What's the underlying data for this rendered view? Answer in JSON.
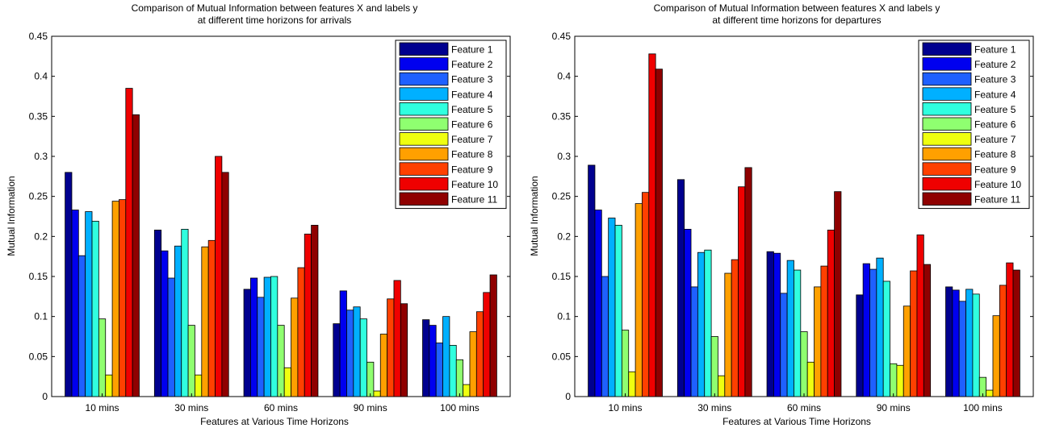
{
  "chart_data": [
    {
      "type": "bar",
      "title": "Comparison of Mutual Information between features X and labels y",
      "subtitle": "at different time horizons for arrivals",
      "xlabel": "Features at Various Time Horizons",
      "ylabel": "Mutual Information",
      "ylim": [
        0,
        0.45
      ],
      "yticks": [
        "0",
        "0.05",
        "0.1",
        "0.15",
        "0.2",
        "0.25",
        "0.3",
        "0.35",
        "0.4",
        "0.45"
      ],
      "categories": [
        "10 mins",
        "30 mins",
        "60 mins",
        "90 mins",
        "100 mins"
      ],
      "legend_position": "top-right",
      "grid": false,
      "series": [
        {
          "name": "Feature 1",
          "color": "#00008f",
          "values": [
            0.28,
            0.208,
            0.134,
            0.091,
            0.096
          ]
        },
        {
          "name": "Feature 2",
          "color": "#0000ef",
          "values": [
            0.233,
            0.182,
            0.148,
            0.132,
            0.089
          ]
        },
        {
          "name": "Feature 3",
          "color": "#1f60ff",
          "values": [
            0.176,
            0.148,
            0.124,
            0.108,
            0.067
          ]
        },
        {
          "name": "Feature 4",
          "color": "#00b0ff",
          "values": [
            0.231,
            0.188,
            0.149,
            0.112,
            0.1
          ]
        },
        {
          "name": "Feature 5",
          "color": "#30ffdf",
          "values": [
            0.219,
            0.209,
            0.15,
            0.097,
            0.064
          ]
        },
        {
          "name": "Feature 6",
          "color": "#8fff70",
          "values": [
            0.097,
            0.089,
            0.089,
            0.043,
            0.046
          ]
        },
        {
          "name": "Feature 7",
          "color": "#efff10",
          "values": [
            0.027,
            0.027,
            0.036,
            0.007,
            0.015
          ]
        },
        {
          "name": "Feature 8",
          "color": "#ffa000",
          "values": [
            0.244,
            0.187,
            0.123,
            0.078,
            0.081
          ]
        },
        {
          "name": "Feature 9",
          "color": "#ff4000",
          "values": [
            0.246,
            0.195,
            0.161,
            0.122,
            0.106
          ]
        },
        {
          "name": "Feature 10",
          "color": "#ef0000",
          "values": [
            0.385,
            0.3,
            0.203,
            0.145,
            0.13
          ]
        },
        {
          "name": "Feature 11",
          "color": "#8f0000",
          "values": [
            0.352,
            0.28,
            0.214,
            0.116,
            0.152
          ]
        }
      ]
    },
    {
      "type": "bar",
      "title": "Comparison of Mutual Information between features X and labels y",
      "subtitle": "at different time horizons for departures",
      "xlabel": "Features at Various Time Horizons",
      "ylabel": "Mutual Information",
      "ylim": [
        0,
        0.45
      ],
      "yticks": [
        "0",
        "0.05",
        "0.1",
        "0.15",
        "0.2",
        "0.25",
        "0.3",
        "0.35",
        "0.4",
        "0.45"
      ],
      "categories": [
        "10 mins",
        "30 mins",
        "60 mins",
        "90 mins",
        "100 mins"
      ],
      "legend_position": "top-right",
      "grid": false,
      "series": [
        {
          "name": "Feature 1",
          "color": "#00008f",
          "values": [
            0.289,
            0.271,
            0.181,
            0.127,
            0.137
          ]
        },
        {
          "name": "Feature 2",
          "color": "#0000ef",
          "values": [
            0.233,
            0.209,
            0.179,
            0.166,
            0.133
          ]
        },
        {
          "name": "Feature 3",
          "color": "#1f60ff",
          "values": [
            0.15,
            0.137,
            0.129,
            0.159,
            0.119
          ]
        },
        {
          "name": "Feature 4",
          "color": "#00b0ff",
          "values": [
            0.223,
            0.18,
            0.17,
            0.173,
            0.134
          ]
        },
        {
          "name": "Feature 5",
          "color": "#30ffdf",
          "values": [
            0.214,
            0.183,
            0.158,
            0.144,
            0.128
          ]
        },
        {
          "name": "Feature 6",
          "color": "#8fff70",
          "values": [
            0.083,
            0.075,
            0.081,
            0.041,
            0.024
          ]
        },
        {
          "name": "Feature 7",
          "color": "#efff10",
          "values": [
            0.031,
            0.026,
            0.043,
            0.039,
            0.008
          ]
        },
        {
          "name": "Feature 8",
          "color": "#ffa000",
          "values": [
            0.241,
            0.154,
            0.137,
            0.113,
            0.101
          ]
        },
        {
          "name": "Feature 9",
          "color": "#ff4000",
          "values": [
            0.255,
            0.171,
            0.163,
            0.157,
            0.139
          ]
        },
        {
          "name": "Feature 10",
          "color": "#ef0000",
          "values": [
            0.428,
            0.262,
            0.208,
            0.202,
            0.167
          ]
        },
        {
          "name": "Feature 11",
          "color": "#8f0000",
          "values": [
            0.409,
            0.286,
            0.256,
            0.165,
            0.158
          ]
        }
      ]
    }
  ]
}
